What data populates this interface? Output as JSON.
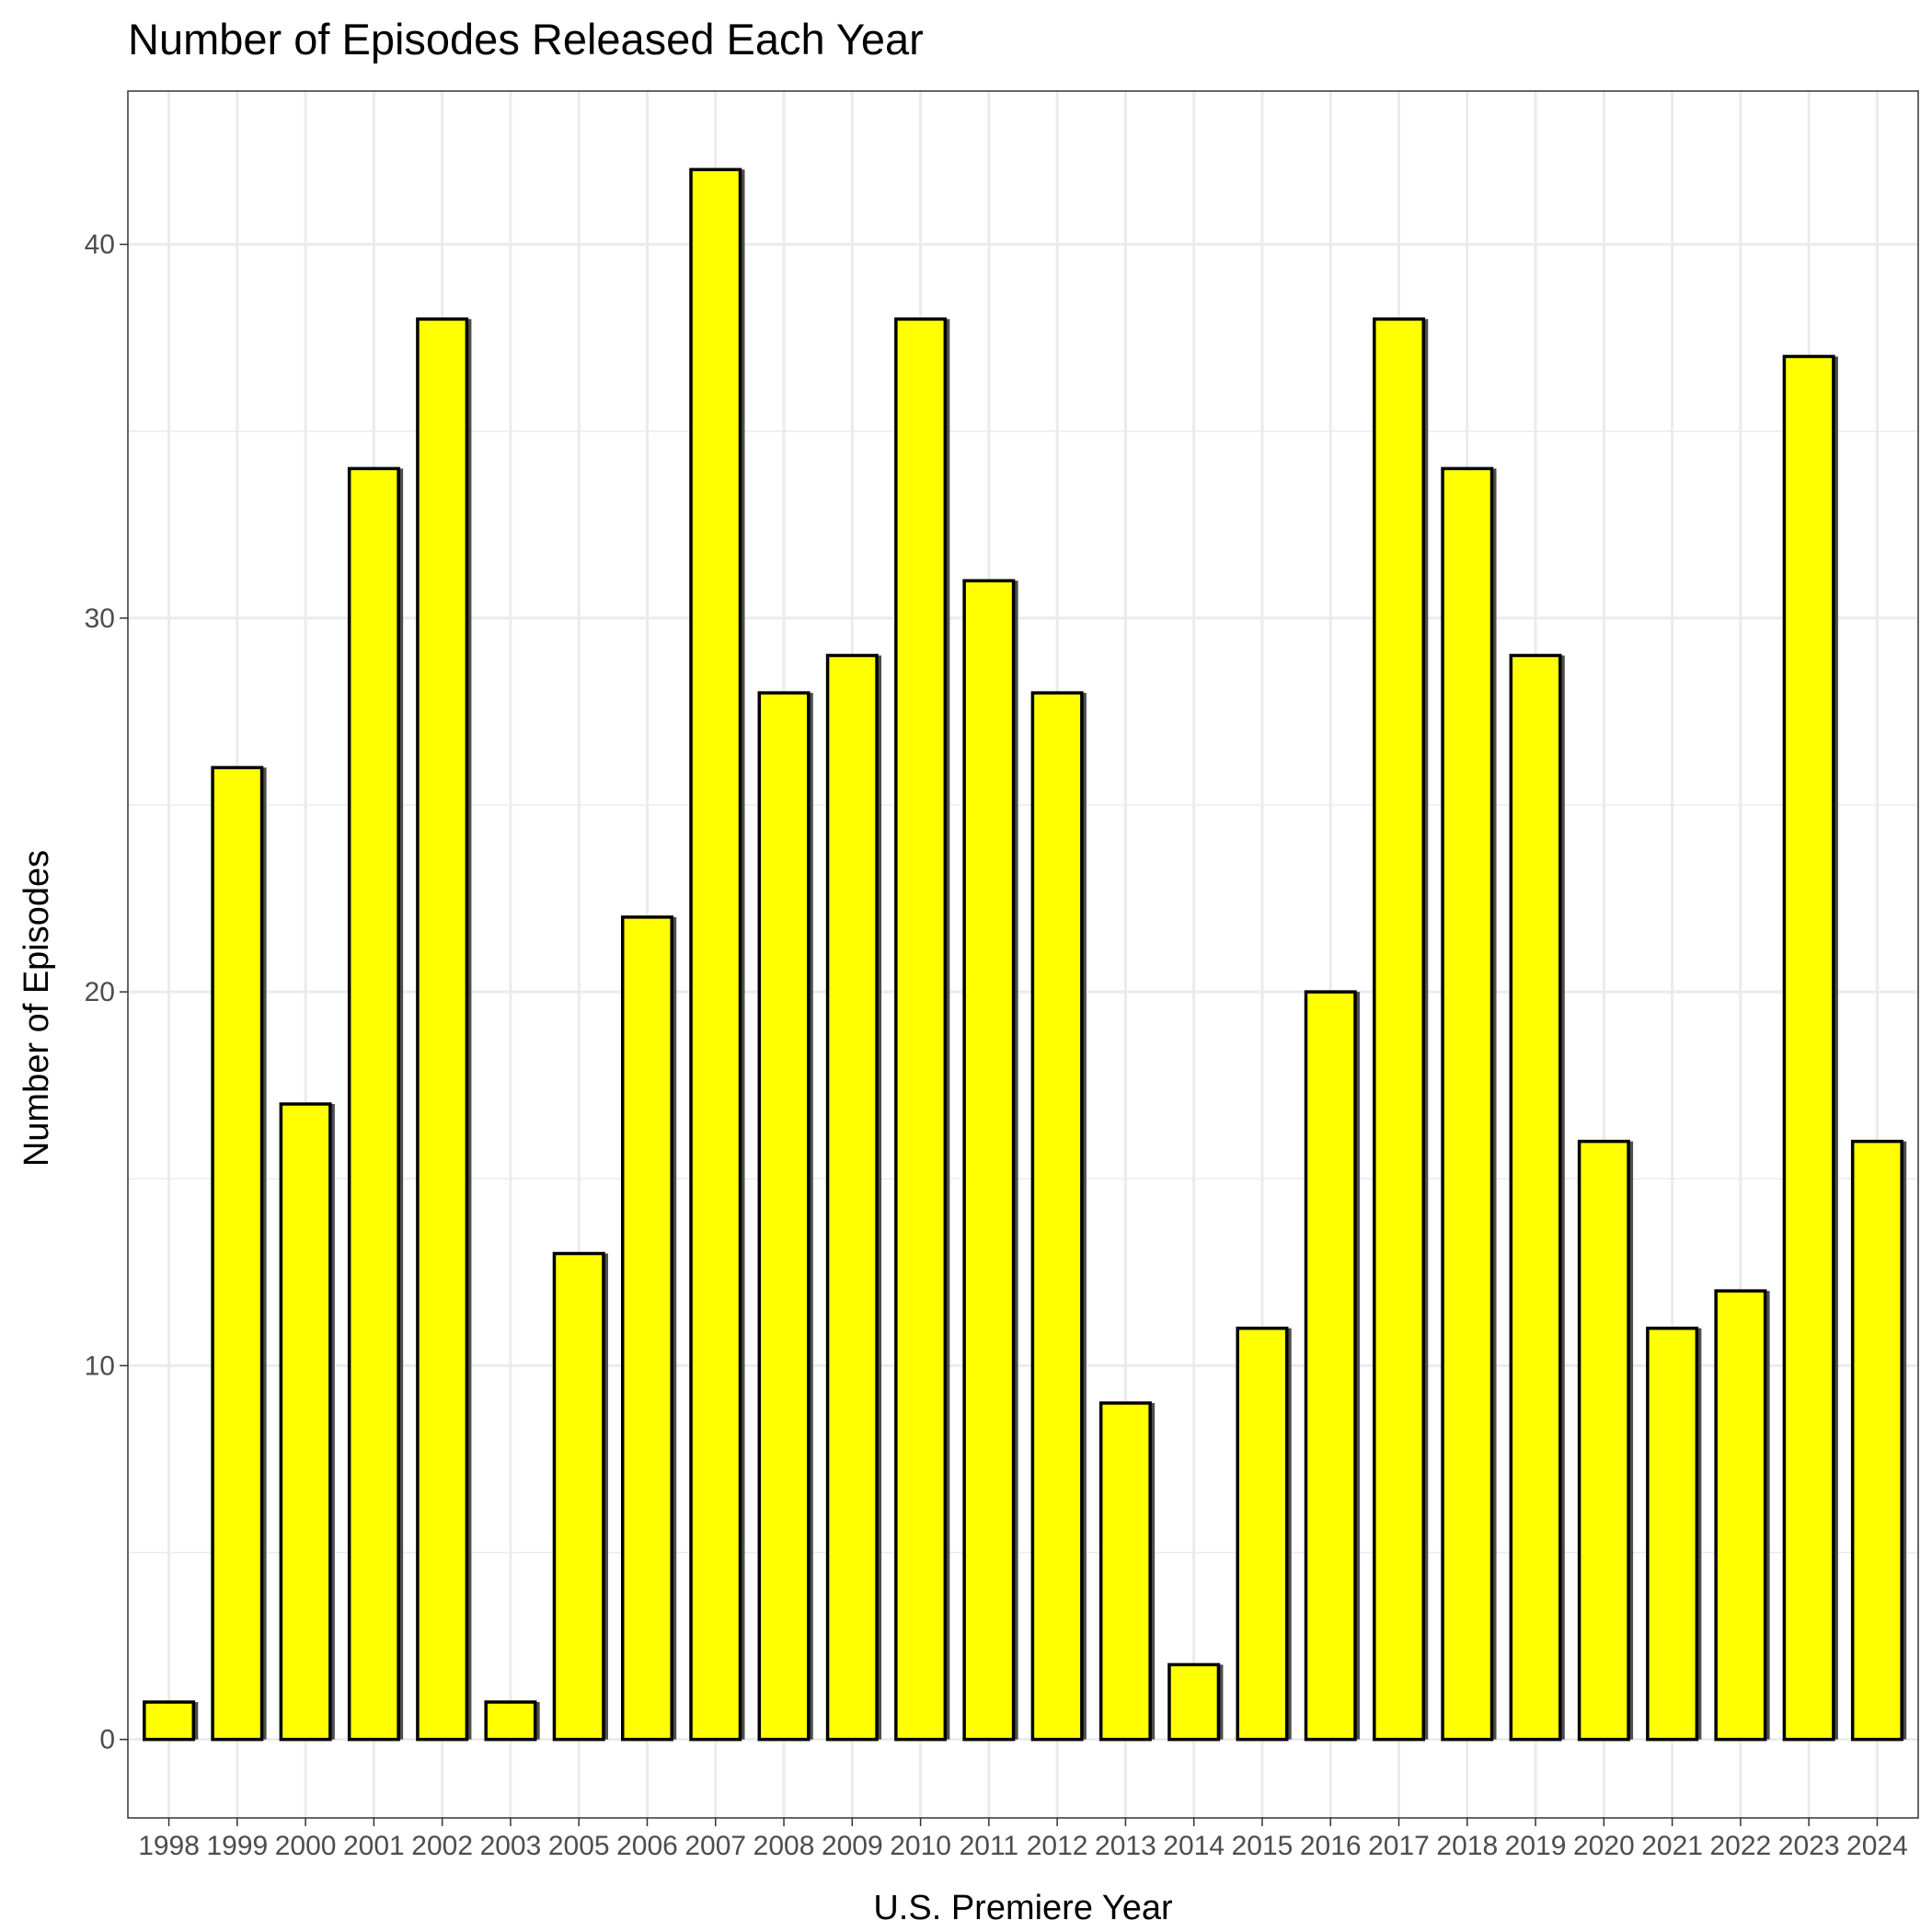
{
  "chart_data": {
    "type": "bar",
    "title": "Number of Episodes Released Each Year",
    "xlabel": "U.S. Premiere Year",
    "ylabel": "Number of Episodes",
    "categories": [
      "1998",
      "1999",
      "2000",
      "2001",
      "2002",
      "2003",
      "2005",
      "2006",
      "2007",
      "2008",
      "2009",
      "2010",
      "2011",
      "2012",
      "2013",
      "2014",
      "2015",
      "2016",
      "2017",
      "2018",
      "2019",
      "2020",
      "2021",
      "2022",
      "2023",
      "2024"
    ],
    "values": [
      1,
      26,
      17,
      34,
      38,
      1,
      13,
      22,
      42,
      28,
      29,
      38,
      31,
      28,
      9,
      2,
      11,
      20,
      38,
      34,
      29,
      16,
      11,
      12,
      37,
      16
    ],
    "ylim": [
      -2.1,
      44.1
    ],
    "yticks": [
      0,
      10,
      20,
      30,
      40
    ],
    "grid": true,
    "legend": "none",
    "colors": {
      "bar_fill": "#FFFF00",
      "bar_outline": "#000000",
      "bar_shadow": "#4d4d4d",
      "grid": "#ebebeb",
      "panel_border": "#333333"
    }
  }
}
